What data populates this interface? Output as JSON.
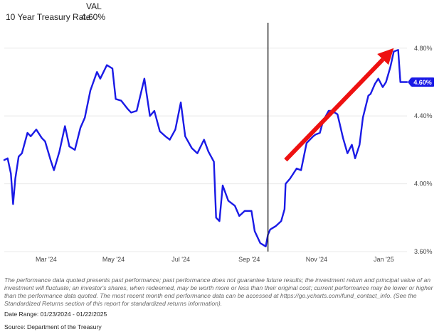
{
  "legend": {
    "header": "VAL",
    "series_name": "10 Year Treasury Rate",
    "series_value": "4.60%"
  },
  "colors": {
    "line": "#1a1ae6",
    "arrow": "#ee1111",
    "marker": "#222222",
    "badge_bg": "#1a1ae6",
    "grid": "#e8e8e8",
    "text": "#444444"
  },
  "chart_data": {
    "type": "line",
    "title": "",
    "xlabel": "",
    "ylabel": "",
    "x_tick_labels": [
      "Mar '24",
      "May '24",
      "Jul '24",
      "Sep '24",
      "Nov '24",
      "Jan '25"
    ],
    "y_tick_labels": [
      "3.60%",
      "4.00%",
      "4.40%",
      "4.80%"
    ],
    "ylim": [
      3.6,
      4.95
    ],
    "xlim": [
      "2024-01-23",
      "2025-01-22"
    ],
    "grid": "horizontal",
    "last_value_label": "4.60%",
    "vertical_marker_date": "2024-09-18",
    "arrow": {
      "from": [
        "2024-10-04",
        4.14
      ],
      "to": [
        "2025-01-10",
        4.8
      ]
    },
    "series": [
      {
        "name": "10 Year Treasury Rate",
        "x": [
          "2024-01-23",
          "2024-01-26",
          "2024-01-29",
          "2024-01-31",
          "2024-02-02",
          "2024-02-05",
          "2024-02-08",
          "2024-02-13",
          "2024-02-16",
          "2024-02-21",
          "2024-02-26",
          "2024-02-29",
          "2024-03-05",
          "2024-03-08",
          "2024-03-13",
          "2024-03-18",
          "2024-03-22",
          "2024-03-27",
          "2024-04-01",
          "2024-04-05",
          "2024-04-10",
          "2024-04-16",
          "2024-04-19",
          "2024-04-25",
          "2024-04-30",
          "2024-05-03",
          "2024-05-08",
          "2024-05-14",
          "2024-05-17",
          "2024-05-22",
          "2024-05-29",
          "2024-06-03",
          "2024-06-07",
          "2024-06-12",
          "2024-06-17",
          "2024-06-21",
          "2024-06-26",
          "2024-07-01",
          "2024-07-05",
          "2024-07-11",
          "2024-07-16",
          "2024-07-22",
          "2024-07-26",
          "2024-07-31",
          "2024-08-02",
          "2024-08-05",
          "2024-08-08",
          "2024-08-13",
          "2024-08-19",
          "2024-08-23",
          "2024-08-28",
          "2024-09-03",
          "2024-09-06",
          "2024-09-11",
          "2024-09-16",
          "2024-09-18",
          "2024-09-20",
          "2024-09-25",
          "2024-09-30",
          "2024-10-03",
          "2024-10-04",
          "2024-10-08",
          "2024-10-14",
          "2024-10-18",
          "2024-10-23",
          "2024-10-29",
          "2024-10-31",
          "2024-11-04",
          "2024-11-07",
          "2024-11-12",
          "2024-11-15",
          "2024-11-20",
          "2024-11-25",
          "2024-11-29",
          "2024-12-03",
          "2024-12-06",
          "2024-12-10",
          "2024-12-13",
          "2024-12-18",
          "2024-12-20",
          "2024-12-24",
          "2024-12-27",
          "2024-12-31",
          "2025-01-03",
          "2025-01-07",
          "2025-01-10",
          "2025-01-14",
          "2025-01-16",
          "2025-01-22"
        ],
        "values": [
          4.14,
          4.15,
          4.06,
          3.88,
          4.03,
          4.16,
          4.18,
          4.3,
          4.28,
          4.32,
          4.27,
          4.25,
          4.14,
          4.08,
          4.19,
          4.34,
          4.22,
          4.2,
          4.33,
          4.39,
          4.55,
          4.66,
          4.62,
          4.7,
          4.68,
          4.5,
          4.49,
          4.44,
          4.42,
          4.43,
          4.62,
          4.4,
          4.43,
          4.31,
          4.28,
          4.26,
          4.32,
          4.48,
          4.28,
          4.21,
          4.18,
          4.26,
          4.19,
          4.13,
          3.8,
          3.78,
          3.99,
          3.9,
          3.87,
          3.81,
          3.84,
          3.84,
          3.72,
          3.65,
          3.63,
          3.7,
          3.73,
          3.75,
          3.78,
          3.85,
          4.0,
          4.03,
          4.09,
          4.08,
          4.24,
          4.28,
          4.29,
          4.3,
          4.37,
          4.43,
          4.43,
          4.41,
          4.27,
          4.18,
          4.23,
          4.15,
          4.23,
          4.39,
          4.52,
          4.53,
          4.59,
          4.62,
          4.57,
          4.6,
          4.69,
          4.78,
          4.79,
          4.6,
          4.6
        ]
      }
    ]
  },
  "footer": {
    "disclaimer": "The performance data quoted presents past performance; past performance does not guarantee future results; the investment return and principal value of an investment will fluctuate; an investor's shares, when redeemed, may be worth more or less than their original cost; current performance may be lower or higher than the performance data quoted. The most recent month end performance data can be accessed at https://go.ycharts.com/fund_contact_info. (See the Standardized Returns section of this report for standardized returns information).",
    "date_range": "Date Range: 01/23/2024 - 01/22/2025",
    "source": "Source: Department of the Treasury"
  }
}
